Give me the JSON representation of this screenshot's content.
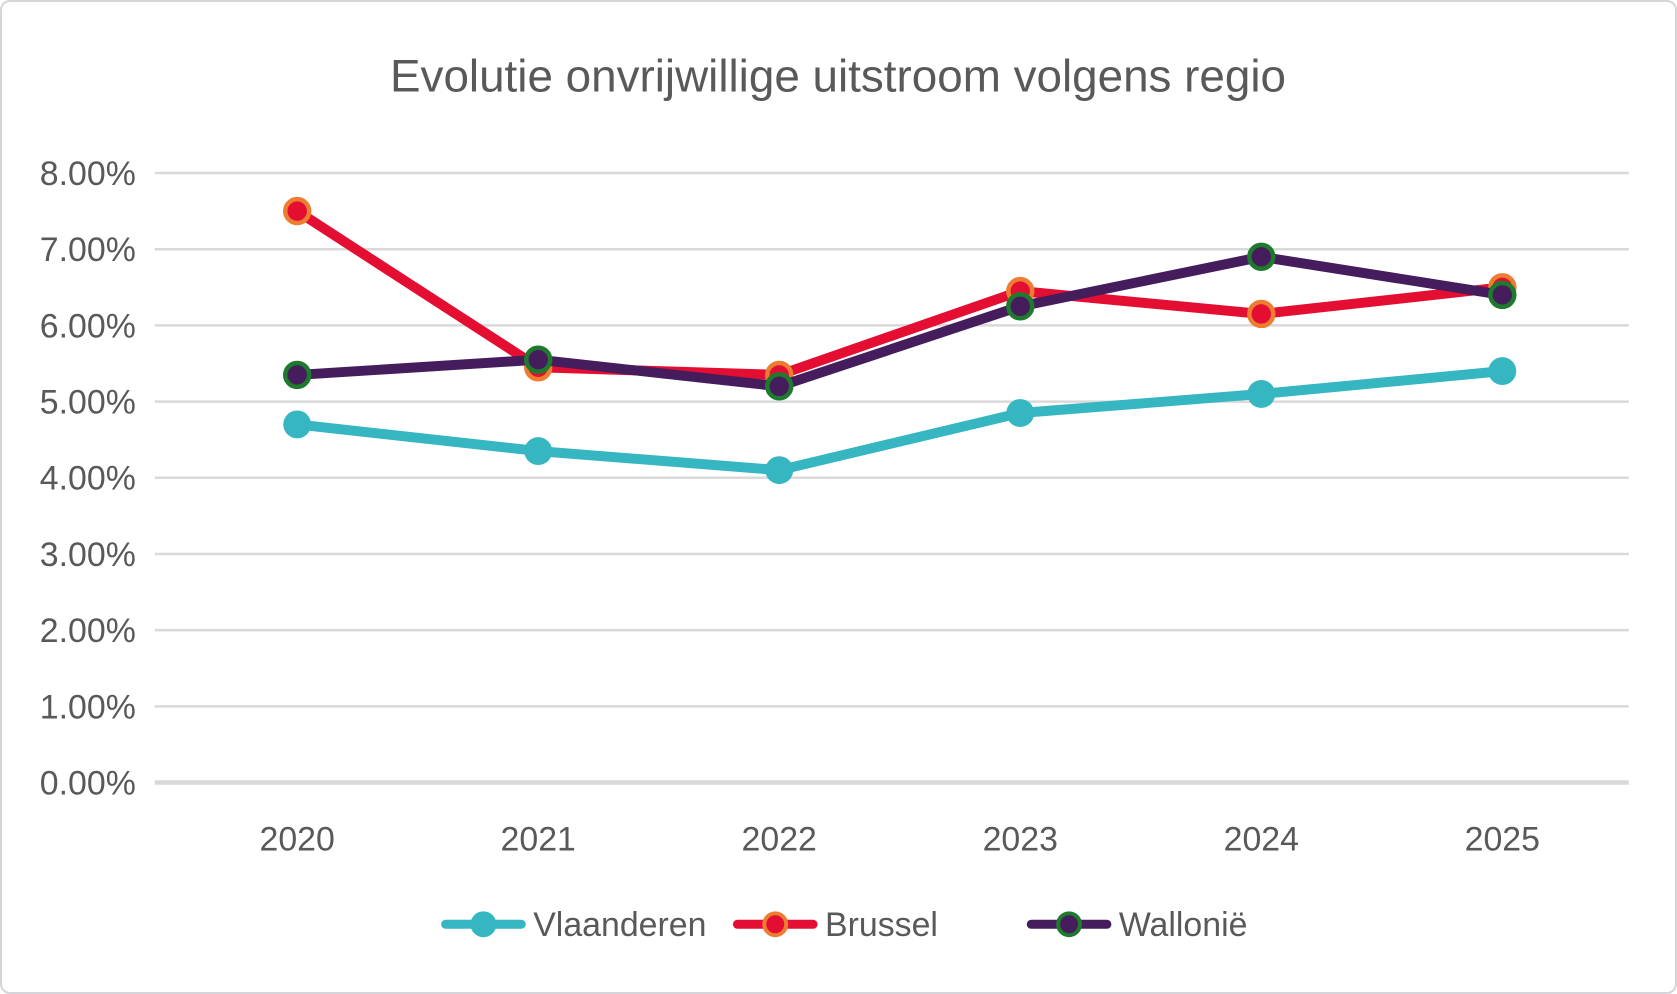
{
  "chart_data": {
    "type": "line",
    "title": "Evolutie onvrijwillige uitstroom volgens regio",
    "xlabel": "",
    "ylabel": "",
    "categories": [
      "2020",
      "2021",
      "2022",
      "2023",
      "2024",
      "2025"
    ],
    "series": [
      {
        "name": "Vlaanderen",
        "color": "#35b6c1",
        "marker_fill": "#35b6c1",
        "marker_ring": "#35b6c1",
        "values": [
          4.7,
          4.35,
          4.1,
          4.85,
          5.1,
          5.4
        ]
      },
      {
        "name": "Brussel",
        "color": "#e40e33",
        "marker_fill": "#e40e33",
        "marker_ring": "#ed7d31",
        "values": [
          7.5,
          5.45,
          5.35,
          6.45,
          6.15,
          6.5
        ]
      },
      {
        "name": "Wallonië",
        "color": "#451d5c",
        "marker_fill": "#451d5c",
        "marker_ring": "#1e7b2e",
        "values": [
          5.35,
          5.55,
          5.2,
          6.25,
          6.9,
          6.4
        ]
      }
    ],
    "ylim": [
      0,
      8
    ],
    "ytick_step": 1,
    "ytick_labels": [
      "0.00%",
      "1.00%",
      "2.00%",
      "3.00%",
      "4.00%",
      "5.00%",
      "6.00%",
      "7.00%",
      "8.00%"
    ],
    "grid": true,
    "legend_position": "bottom",
    "colors": {
      "text": "#595959",
      "grid": "#d9d9d9",
      "baseline": "#d9d9d9",
      "background": "#ffffff"
    }
  }
}
